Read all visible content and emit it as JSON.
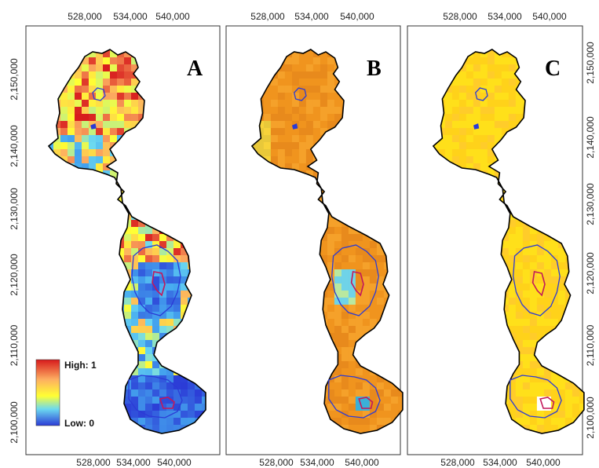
{
  "axes": {
    "x_ticks": [
      "528,000",
      "534,000",
      "540,000"
    ],
    "y_ticks": [
      "2,150,000",
      "2,140,000",
      "2,130,000",
      "2,120,000",
      "2,110,000",
      "2,100,000"
    ]
  },
  "panels": [
    {
      "letter": "A",
      "scheme": "rainbow"
    },
    {
      "letter": "B",
      "scheme": "orange"
    },
    {
      "letter": "C",
      "scheme": "yellow"
    }
  ],
  "legend": {
    "high_label": "High: 1",
    "low_label": "Low: 0",
    "colors": [
      "#d7191c",
      "#fdae61",
      "#ffff33",
      "#6cd9f0",
      "#2b3bd6"
    ]
  },
  "contour_colors": {
    "outer": "#000000",
    "inner": "#2b3bd6",
    "core": "#c2185b"
  }
}
